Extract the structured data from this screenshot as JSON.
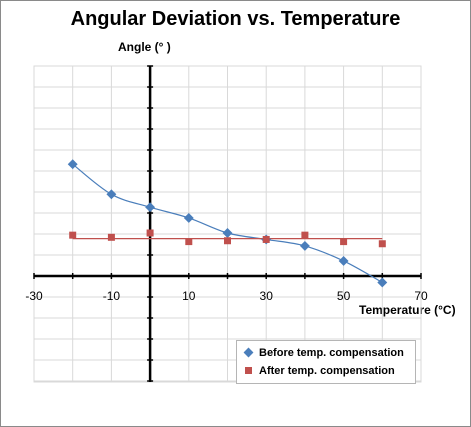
{
  "chart_data": {
    "type": "scatter",
    "title": "Angular Deviation vs. Temperature",
    "xlabel": "Temperature (°C)",
    "ylabel": "Angle (° )",
    "xlim": [
      -30,
      70
    ],
    "x_ticks": [
      -30,
      -10,
      10,
      30,
      50,
      70
    ],
    "y_tick_labels_shown": false,
    "grid": true,
    "legend_position": "bottom-right",
    "series": [
      {
        "name": "Before temp. compensation",
        "marker": "diamond",
        "color": "#4a7ebb",
        "trendline": "smooth curve",
        "x": [
          -20,
          -10,
          0,
          10,
          20,
          30,
          40,
          50,
          60
        ],
        "y": [
          2.6,
          1.9,
          1.6,
          1.35,
          1.0,
          0.85,
          0.7,
          0.35,
          -0.15
        ]
      },
      {
        "name": "After temp. compensation",
        "marker": "square",
        "color": "#c0504d",
        "trendline": "flat line",
        "x": [
          -20,
          -10,
          0,
          10,
          20,
          30,
          40,
          50,
          60
        ],
        "y": [
          0.95,
          0.9,
          1.0,
          0.8,
          0.82,
          0.85,
          0.95,
          0.8,
          0.75
        ]
      }
    ]
  }
}
